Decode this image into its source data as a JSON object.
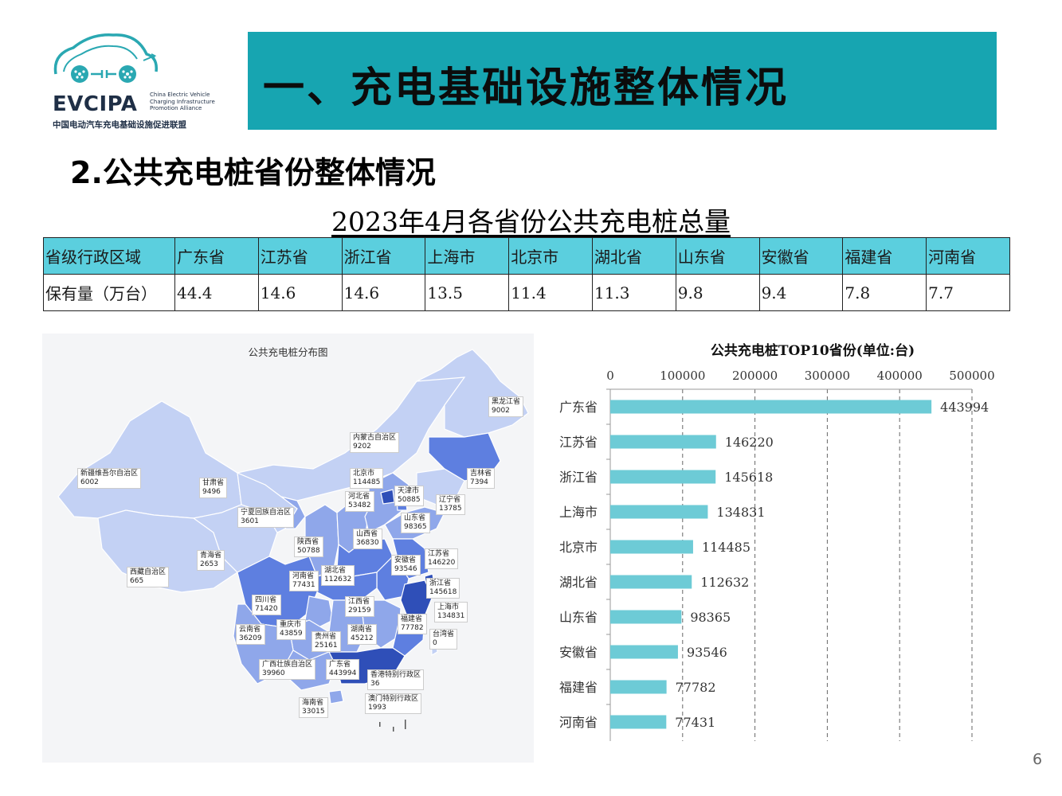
{
  "logo": {
    "name": "EVCIPA",
    "en_lines": [
      "China Electric Vehicle",
      "Charging Infrastructure",
      "Promotion Alliance"
    ],
    "cn": "中国电动汽车充电基础设施促进联盟",
    "color": "#1f2f46",
    "accent": "#2aa8b2"
  },
  "header": {
    "title": "一、充电基础设施整体情况",
    "band_color": "#17a5b1"
  },
  "section_title": "2.公共充电桩省份整体情况",
  "table": {
    "title": "2023年4月各省份公共充电桩总量",
    "row1_label": "省级行政区域",
    "row2_label": "保有量（万台）",
    "provinces": [
      "广东省",
      "江苏省",
      "浙江省",
      "上海市",
      "北京市",
      "湖北省",
      "山东省",
      "安徽省",
      "福建省",
      "河南省"
    ],
    "values": [
      "44.4",
      "14.6",
      "14.6",
      "13.5",
      "11.4",
      "11.3",
      "9.8",
      "9.4",
      "7.8",
      "7.7"
    ],
    "header_color": "#5bcfde"
  },
  "map": {
    "title": "公共充电桩分布图",
    "labels": [
      {
        "name": "黑龙江省",
        "value": "9002"
      },
      {
        "name": "内蒙古自治区",
        "value": "9202"
      },
      {
        "name": "吉林省",
        "value": "7394"
      },
      {
        "name": "辽宁省",
        "value": "13785"
      },
      {
        "name": "新疆维吾尔自治区",
        "value": "6002"
      },
      {
        "name": "甘肃省",
        "value": "9496"
      },
      {
        "name": "北京市",
        "value": "114485"
      },
      {
        "name": "天津市",
        "value": "50885"
      },
      {
        "name": "河北省",
        "value": "53482"
      },
      {
        "name": "宁夏回族自治区",
        "value": "3601"
      },
      {
        "name": "山东省",
        "value": "98365"
      },
      {
        "name": "山西省",
        "value": "36830"
      },
      {
        "name": "陕西省",
        "value": "50788"
      },
      {
        "name": "青海省",
        "value": "2653"
      },
      {
        "name": "江苏省",
        "value": "146220"
      },
      {
        "name": "安徽省",
        "value": "93546"
      },
      {
        "name": "西藏自治区",
        "value": "665"
      },
      {
        "name": "河南省",
        "value": "77431"
      },
      {
        "name": "湖北省",
        "value": "112632"
      },
      {
        "name": "浙江省",
        "value": "145618"
      },
      {
        "name": "四川省",
        "value": "71420"
      },
      {
        "name": "江西省",
        "value": "29159"
      },
      {
        "name": "上海市",
        "value": "134831"
      },
      {
        "name": "福建省",
        "value": "77782"
      },
      {
        "name": "云南省",
        "value": "36209"
      },
      {
        "name": "重庆市",
        "value": "43859"
      },
      {
        "name": "贵州省",
        "value": "25161"
      },
      {
        "name": "湖南省",
        "value": "45212"
      },
      {
        "name": "台湾省",
        "value": "0"
      },
      {
        "name": "广西壮族自治区",
        "value": "39960"
      },
      {
        "name": "广东省",
        "value": "443994"
      },
      {
        "name": "香港特别行政区",
        "value": "36"
      },
      {
        "name": "澳门特别行政区",
        "value": "1993"
      },
      {
        "name": "海南省",
        "value": "33015"
      }
    ],
    "colors": {
      "background": "#f4f5f7",
      "light": "#c3d1f4",
      "mid": "#8fa7ea",
      "strong": "#5e7fe0",
      "dark": "#2f4fb8"
    }
  },
  "chart_data": {
    "type": "bar",
    "orientation": "horizontal",
    "title": "公共充电桩TOP10省份(单位:台)",
    "categories": [
      "广东省",
      "江苏省",
      "浙江省",
      "上海市",
      "北京市",
      "湖北省",
      "山东省",
      "安徽省",
      "福建省",
      "河南省"
    ],
    "values": [
      443994,
      146220,
      145618,
      134831,
      114485,
      112632,
      98365,
      93546,
      77782,
      77431
    ],
    "xlim": [
      0,
      500000
    ],
    "ticks": [
      0,
      100000,
      200000,
      300000,
      400000,
      500000
    ],
    "axis_position": "top",
    "grid": "vertical dashed",
    "bar_color": "#6dcbd6"
  },
  "page_number": "6"
}
